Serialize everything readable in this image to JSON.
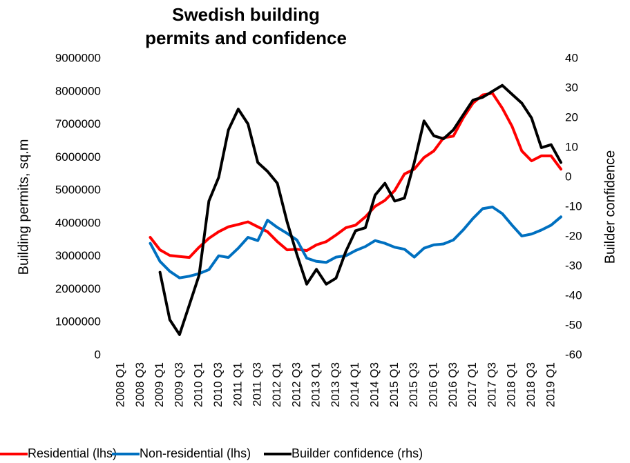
{
  "chart_data": {
    "type": "line",
    "title": "Swedish building permits and confidence",
    "y_label": "Building permits, sq.m",
    "y2_label": "Builder confidence",
    "categories": [
      "2008 Q1",
      null,
      "2008 Q3",
      null,
      "2009 Q1",
      null,
      "2009 Q3",
      null,
      "2010 Q1",
      null,
      "2010 Q3",
      null,
      "2011 Q1",
      null,
      "2011 Q3",
      null,
      "2012 Q1",
      null,
      "2012 Q3",
      null,
      "2013 Q1",
      null,
      "2013 Q3",
      null,
      "2014 Q1",
      null,
      "2014 Q3",
      null,
      "2015 Q1",
      null,
      "2015 Q3",
      null,
      "2016 Q1",
      null,
      "2016 Q3",
      null,
      "2017 Q1",
      null,
      "2017 Q3",
      null,
      "2018 Q1",
      null,
      "2018 Q3",
      null,
      "2019 Q1",
      null
    ],
    "series": [
      {
        "name": "Residential (lhs)",
        "color": "#ff0000",
        "values": [
          null,
          null,
          null,
          3580000,
          3200000,
          3030000,
          3000000,
          2970000,
          3280000,
          3550000,
          3750000,
          3900000,
          3970000,
          4050000,
          3900000,
          3750000,
          3450000,
          3200000,
          3220000,
          3180000,
          3350000,
          3450000,
          3650000,
          3870000,
          3950000,
          4200000,
          4520000,
          4700000,
          5000000,
          5500000,
          5650000,
          6000000,
          6200000,
          6600000,
          6650000,
          7200000,
          7650000,
          7900000,
          7950000,
          7500000,
          6950000,
          6200000,
          5900000,
          6050000,
          6050000,
          5650000
        ]
      },
      {
        "name": "Non-residential (lhs)",
        "color": "#0070c0",
        "values": [
          null,
          null,
          null,
          3400000,
          2850000,
          2550000,
          2350000,
          2400000,
          2480000,
          2600000,
          3020000,
          2970000,
          3250000,
          3580000,
          3480000,
          4100000,
          3880000,
          3700000,
          3500000,
          2950000,
          2850000,
          2820000,
          2980000,
          3020000,
          3180000,
          3300000,
          3480000,
          3400000,
          3280000,
          3220000,
          2980000,
          3250000,
          3350000,
          3380000,
          3500000,
          3800000,
          4150000,
          4450000,
          4500000,
          4300000,
          3950000,
          3620000,
          3680000,
          3800000,
          3950000,
          4200000
        ]
      },
      {
        "name": "Builder confidence (rhs)",
        "color": "#000000",
        "axis": "y2",
        "values": [
          null,
          null,
          null,
          null,
          -32,
          -48,
          -53,
          -43,
          -33,
          -8,
          0,
          16,
          23,
          18,
          5,
          2,
          -2,
          -15,
          -26,
          -36,
          -31,
          -36,
          -34,
          -25,
          -18,
          -17,
          -6,
          -2,
          -8,
          -7,
          5,
          19,
          14,
          13,
          16,
          21,
          26,
          27,
          29,
          31,
          28,
          25,
          20,
          10,
          11,
          5
        ]
      }
    ],
    "ylim": [
      0,
      9000000
    ],
    "yticks": [
      0,
      1000000,
      2000000,
      3000000,
      4000000,
      5000000,
      6000000,
      7000000,
      8000000,
      9000000
    ],
    "y2lim": [
      -60,
      40
    ],
    "y2ticks": [
      -60,
      -50,
      -40,
      -30,
      -20,
      -10,
      0,
      10,
      20,
      30,
      40
    ],
    "grid": false,
    "legend": "bottom"
  }
}
